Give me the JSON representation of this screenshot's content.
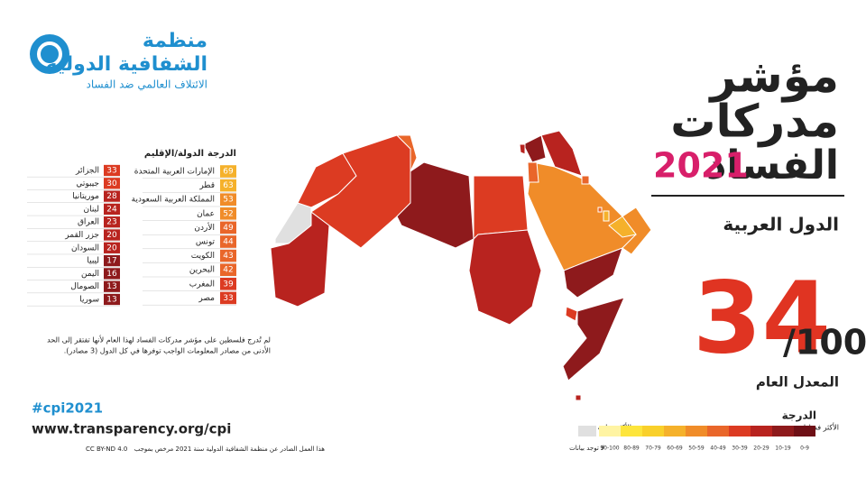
{
  "logo": {
    "name": "منظمة",
    "name2": "الشفافية الدولية",
    "tagline": "الائتلاف العالمي ضد الفساد"
  },
  "title": {
    "line1": "مؤشر",
    "line2": "مدركات",
    "line3": "الفساد",
    "year": "2021",
    "subtitle": "الدول العربية"
  },
  "average": {
    "score": 34,
    "max": "/100",
    "label": "المعدل العام"
  },
  "table": {
    "header_score": "الدرجة",
    "header_country": "الدولة/الإقليم",
    "rows_right": [
      [
        "الإمارات العربية المتحدة",
        69
      ],
      [
        "قطر",
        63
      ],
      [
        "المملكة العربية السعودية",
        53
      ],
      [
        "عمان",
        52
      ],
      [
        "الأردن",
        49
      ],
      [
        "تونس",
        44
      ],
      [
        "الكويت",
        43
      ],
      [
        "البحرين",
        42
      ],
      [
        "المغرب",
        39
      ],
      [
        "مصر",
        33
      ]
    ],
    "rows_left": [
      [
        "الجزائر",
        33
      ],
      [
        "جيبوتي",
        30
      ],
      [
        "موريتانيا",
        28
      ],
      [
        "لبنان",
        24
      ],
      [
        "العراق",
        23
      ],
      [
        "جزر القمر",
        20
      ],
      [
        "السودان",
        20
      ],
      [
        "ليبيا",
        17
      ],
      [
        "اليمن",
        16
      ],
      [
        "الصومال",
        13
      ],
      [
        "سوريا",
        13
      ]
    ]
  },
  "note": [
    "لم تُدرج فلسطين على مؤشر مدركات الفساد لهذا العام لأنها تفتقر إلى الحد",
    "الأدنى من مصادر المعلومات الواجب توفرها في كل الدول (3 مصادر)."
  ],
  "footer": {
    "hashtag": "#cpi2021",
    "url": "www.transparency.org/cpi",
    "license": "CC BY-ND 4.0",
    "license_text": "هذا العمل الصادر عن منظمة الشفافية الدولية سنة 2021 مرخص بموجب"
  },
  "legend": {
    "title": "الدرجة",
    "most_corrupt": "الأكثر فسادا",
    "cleanest": "الأكثر نزاهة",
    "no_data": "لا توجد بيانات",
    "no_data_color": "#e0e0e0",
    "bins": [
      {
        "label": "0-9",
        "color": "#6e1016"
      },
      {
        "label": "10-19",
        "color": "#8e1a1c"
      },
      {
        "label": "20-29",
        "color": "#b8231f"
      },
      {
        "label": "30-39",
        "color": "#dc3b22"
      },
      {
        "label": "40-49",
        "color": "#e9662a"
      },
      {
        "label": "50-59",
        "color": "#f08c29"
      },
      {
        "label": "60-69",
        "color": "#f5b12b"
      },
      {
        "label": "70-79",
        "color": "#f9d02b"
      },
      {
        "label": "80-89",
        "color": "#fde53c"
      },
      {
        "label": "90-100",
        "color": "#fff4a3"
      }
    ]
  }
}
